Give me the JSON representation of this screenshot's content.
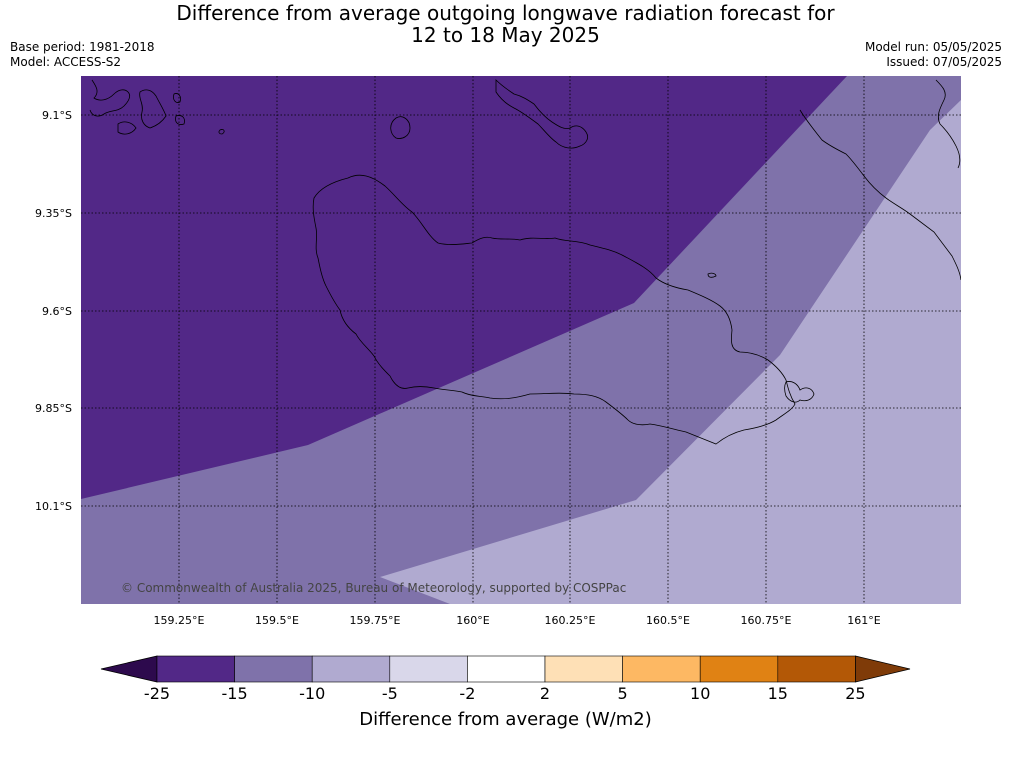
{
  "header": {
    "title_line1": "Difference from average outgoing longwave radiation forecast for",
    "title_line2": "12 to 18 May 2025",
    "base_period": "Base period: 1981-2018",
    "model": "Model: ACCESS-S2",
    "model_run": "Model run: 05/05/2025",
    "issued": "Issued: 07/05/2025"
  },
  "map": {
    "copyright": "© Commonwealth of Australia 2025, Bureau of Meteorology, supported by COSPPac",
    "lat_labels": [
      "9.1°S",
      "9.35°S",
      "9.6°S",
      "9.85°S",
      "10.1°S"
    ],
    "lon_labels": [
      "159.25°E",
      "159.5°E",
      "159.75°E",
      "160°E",
      "160.25°E",
      "160.5°E",
      "160.75°E",
      "161°E"
    ],
    "colors": {
      "band_minus15_minus25": "#522887",
      "band_minus10_minus15": "#7f72aa",
      "band_minus5_minus10": "#b0aad0"
    }
  },
  "colorbar": {
    "title": "Difference from average (W/m2)",
    "tick_labels": [
      "-25",
      "-15",
      "-10",
      "-5",
      "-2",
      "2",
      "5",
      "10",
      "15",
      "25"
    ],
    "colors": [
      "#2d0a4d",
      "#522887",
      "#7f72aa",
      "#b0aad0",
      "#d9d7ea",
      "#ffffff",
      "#fee0b6",
      "#fdb863",
      "#e08214",
      "#b35806",
      "#7f3b08"
    ]
  }
}
